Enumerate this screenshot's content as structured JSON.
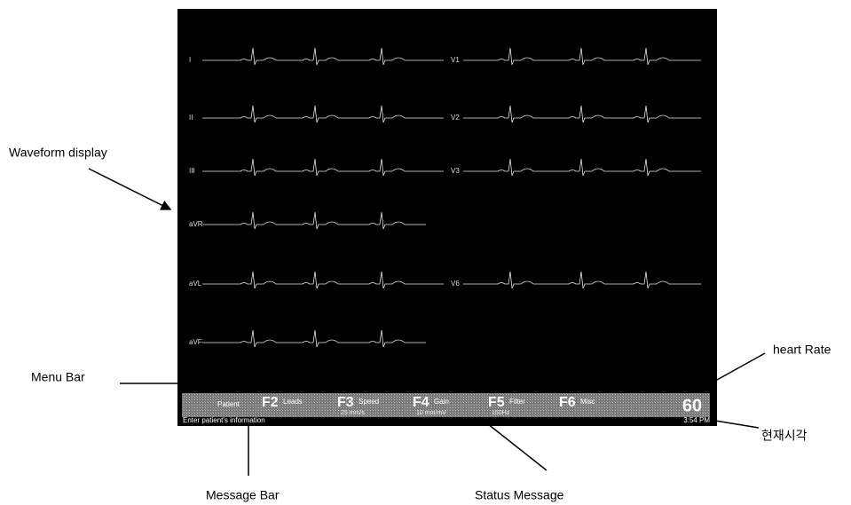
{
  "annotations": {
    "waveform_display": "Waveform display",
    "menu_bar": "Menu Bar",
    "heart_rate": "heart Rate",
    "current_time": "현재시각",
    "message_bar": "Message Bar",
    "status_message": "Status Message"
  },
  "screen": {
    "leads_left": [
      "I",
      "II",
      "III",
      "aVR",
      "aVL",
      "aVF"
    ],
    "leads_right": [
      "V1",
      "V2",
      "V3",
      "V6"
    ],
    "menu": {
      "patient": "Patient",
      "keys": [
        {
          "key": "F2",
          "label": "Leads"
        },
        {
          "key": "F3",
          "label": "Speed",
          "sub": "25 mm/s"
        },
        {
          "key": "F4",
          "label": "Gain",
          "sub": "10 mm/mV"
        },
        {
          "key": "F5",
          "label": "Filter",
          "sub": "150Hz"
        },
        {
          "key": "F6",
          "label": "Misc"
        }
      ],
      "heart_rate": "60"
    },
    "message": "Enter patient's information",
    "time": "3:54 PM"
  }
}
